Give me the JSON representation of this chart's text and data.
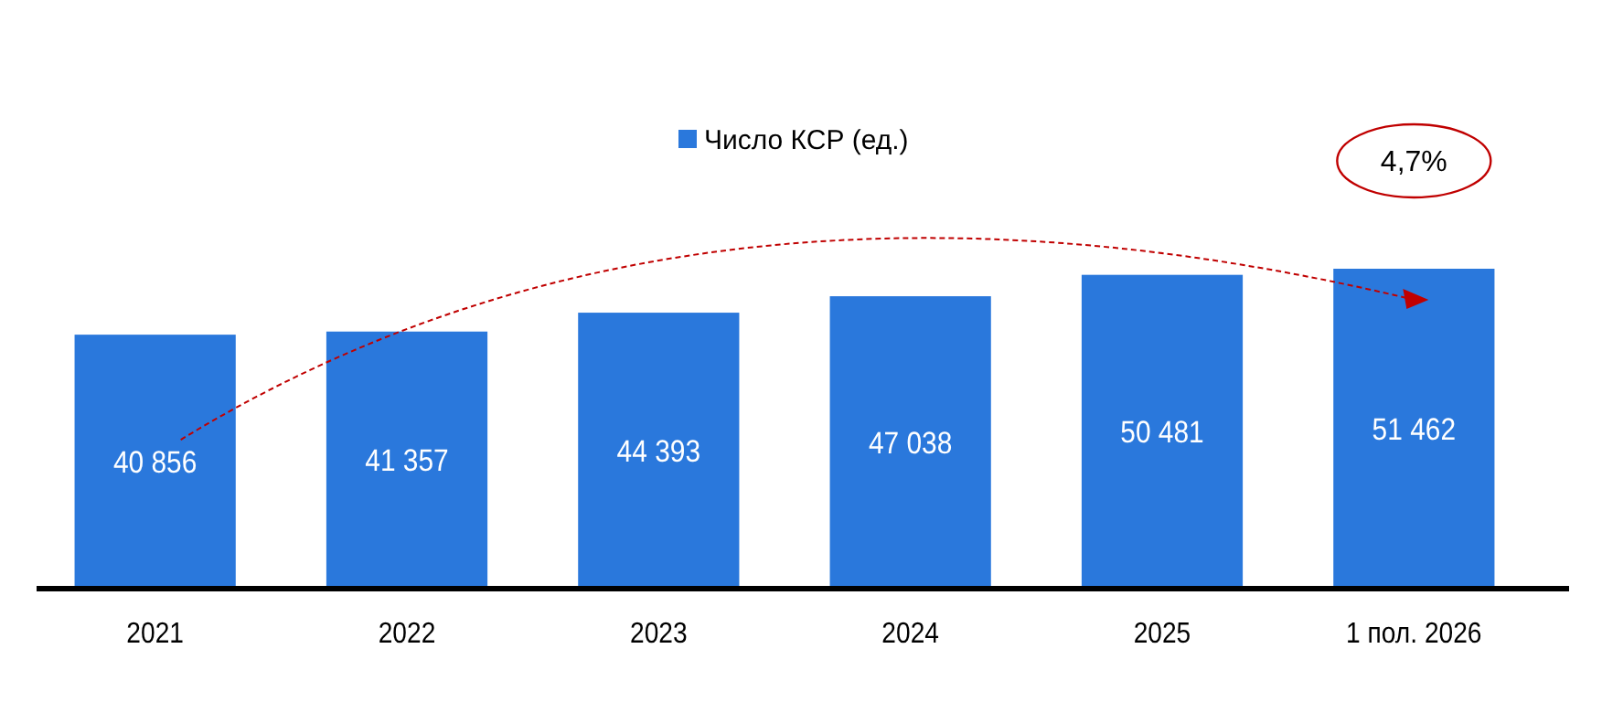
{
  "chart_data": {
    "type": "bar",
    "categories": [
      "2021",
      "2022",
      "2023",
      "2024",
      "2025",
      "1 пол. 2026"
    ],
    "series": [
      {
        "name": "Число КСР (ед.)",
        "color": "#2a78dc",
        "values": [
          40856,
          41357,
          44393,
          47038,
          50481,
          51462
        ]
      }
    ],
    "data_labels": true,
    "tick_labels": "x",
    "legend": "top",
    "grid": false,
    "annotations": [
      "4,7%"
    ]
  }
}
